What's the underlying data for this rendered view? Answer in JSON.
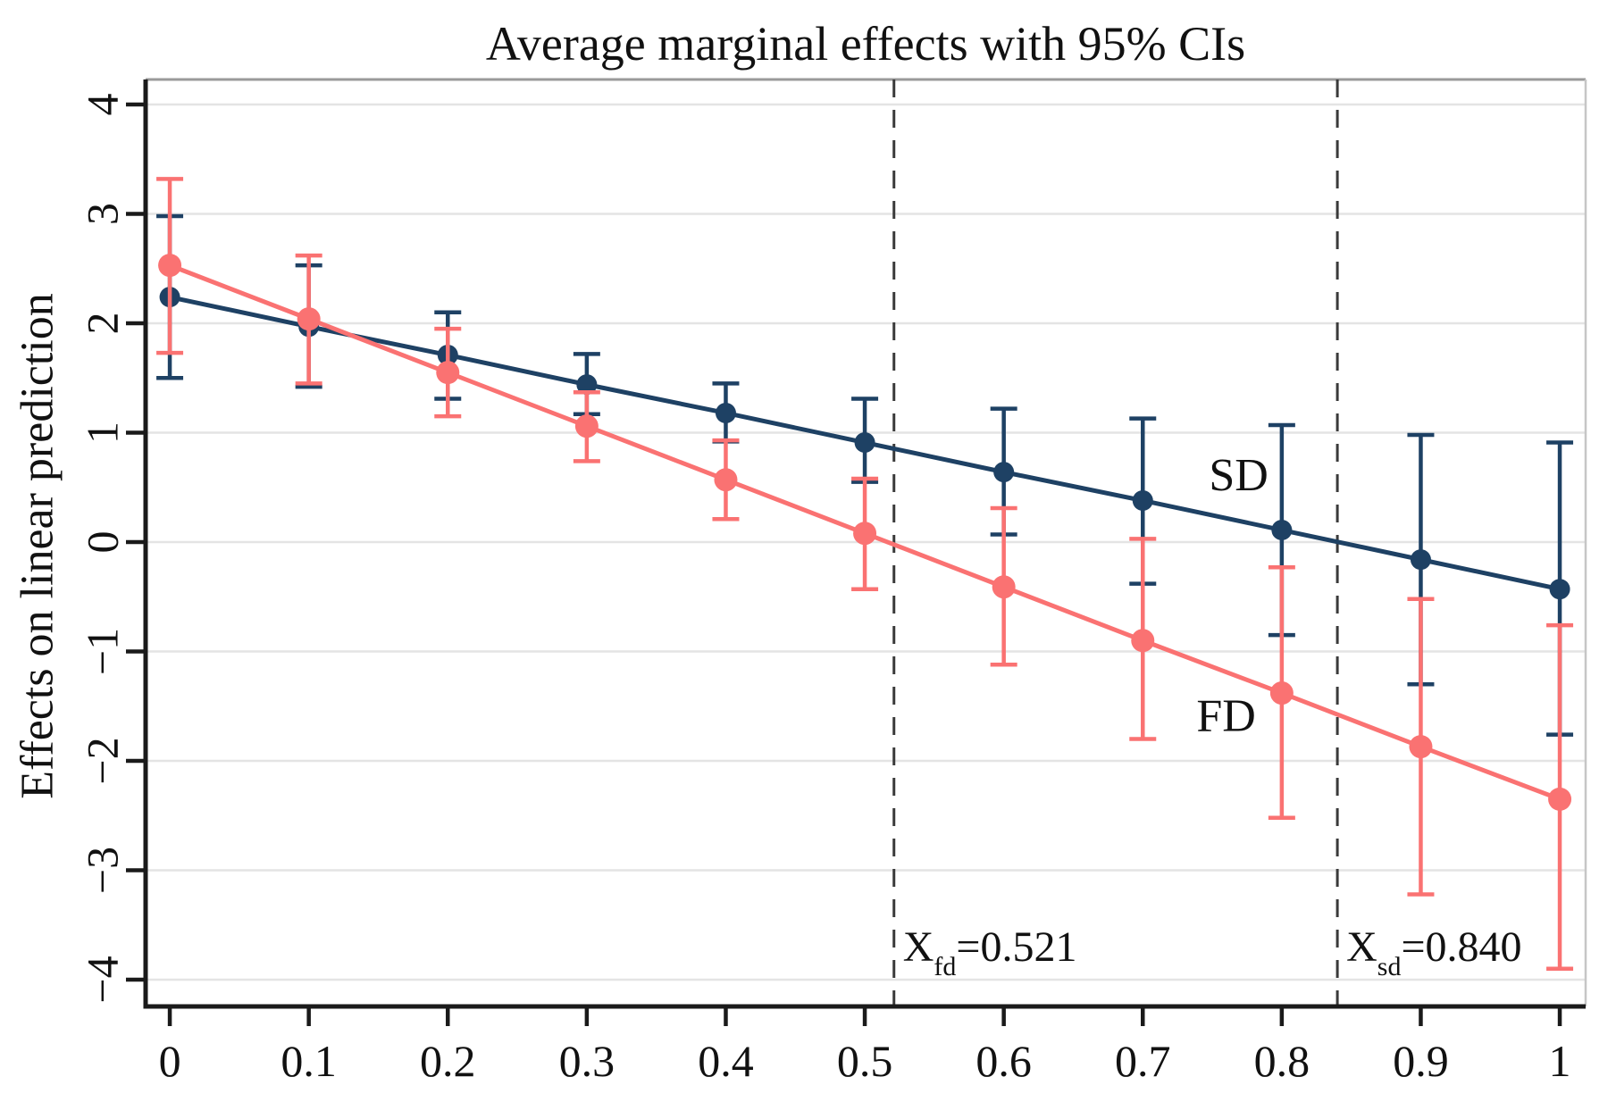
{
  "title": "Average marginal effects with 95% CIs",
  "chart_data": {
    "type": "line",
    "title": "Average marginal effects with 95% CIs",
    "xlabel": "",
    "ylabel": "Effects on linear prediction",
    "x": [
      0,
      0.1,
      0.2,
      0.3,
      0.4,
      0.5,
      0.6,
      0.7,
      0.8,
      0.9,
      1.0
    ],
    "x_tick_labels": [
      "0",
      "0.1",
      "0.2",
      "0.3",
      "0.4",
      "0.5",
      "0.6",
      "0.7",
      "0.8",
      "0.9",
      "1"
    ],
    "y_ticks": [
      -4,
      -3,
      -2,
      -1,
      0,
      1,
      2,
      3,
      4
    ],
    "y_tick_labels": [
      "−4",
      "−3",
      "−2",
      "−1",
      "0",
      "1",
      "2",
      "3",
      "4"
    ],
    "xlim": [
      -0.0174,
      1.0186
    ],
    "ylim": [
      -4.245,
      4.229
    ],
    "grid": true,
    "legend_position": "inline-labels",
    "series": [
      {
        "name": "SD",
        "color": "#1e4164",
        "values": [
          2.24,
          1.97,
          1.71,
          1.44,
          1.18,
          0.91,
          0.64,
          0.38,
          0.11,
          -0.16,
          -0.43
        ],
        "ci_low": [
          1.5,
          1.42,
          1.31,
          1.17,
          0.92,
          0.55,
          0.07,
          -0.38,
          -0.85,
          -1.3,
          -1.76
        ],
        "ci_high": [
          2.98,
          2.53,
          2.1,
          1.72,
          1.45,
          1.31,
          1.22,
          1.13,
          1.07,
          0.98,
          0.91
        ],
        "label": "SD",
        "label_at": {
          "x": 0.769,
          "y": 0.62
        }
      },
      {
        "name": "FD",
        "color": "#fa7272",
        "values": [
          2.53,
          2.04,
          1.55,
          1.06,
          0.57,
          0.08,
          -0.41,
          -0.9,
          -1.38,
          -1.87,
          -2.35
        ],
        "ci_low": [
          1.73,
          1.45,
          1.15,
          0.74,
          0.21,
          -0.43,
          -1.12,
          -1.8,
          -2.52,
          -3.22,
          -3.9
        ],
        "ci_high": [
          3.32,
          2.62,
          1.95,
          1.37,
          0.93,
          0.58,
          0.31,
          0.03,
          -0.23,
          -0.52,
          -0.76
        ],
        "label": "FD",
        "label_at": {
          "x": 0.76,
          "y": -1.58
        }
      }
    ],
    "reference_lines": [
      {
        "x": 0.521,
        "label_main": "X",
        "label_sub": "fd",
        "label_rest": "=0.521"
      },
      {
        "x": 0.84,
        "label_main": "X",
        "label_sub": "sd",
        "label_rest": "=0.840"
      }
    ],
    "ci_level_note": "95% CIs"
  },
  "colors": {
    "sd": "#1e4164",
    "fd": "#fa7272",
    "gridline": "#e4e4e4",
    "axis": "#1a1a1a",
    "frame_top": "#9a9a9a",
    "frame_right": "#c6c6c6",
    "reference_line": "#3a3a3a",
    "background": "#ffffff",
    "text": "#111111"
  }
}
